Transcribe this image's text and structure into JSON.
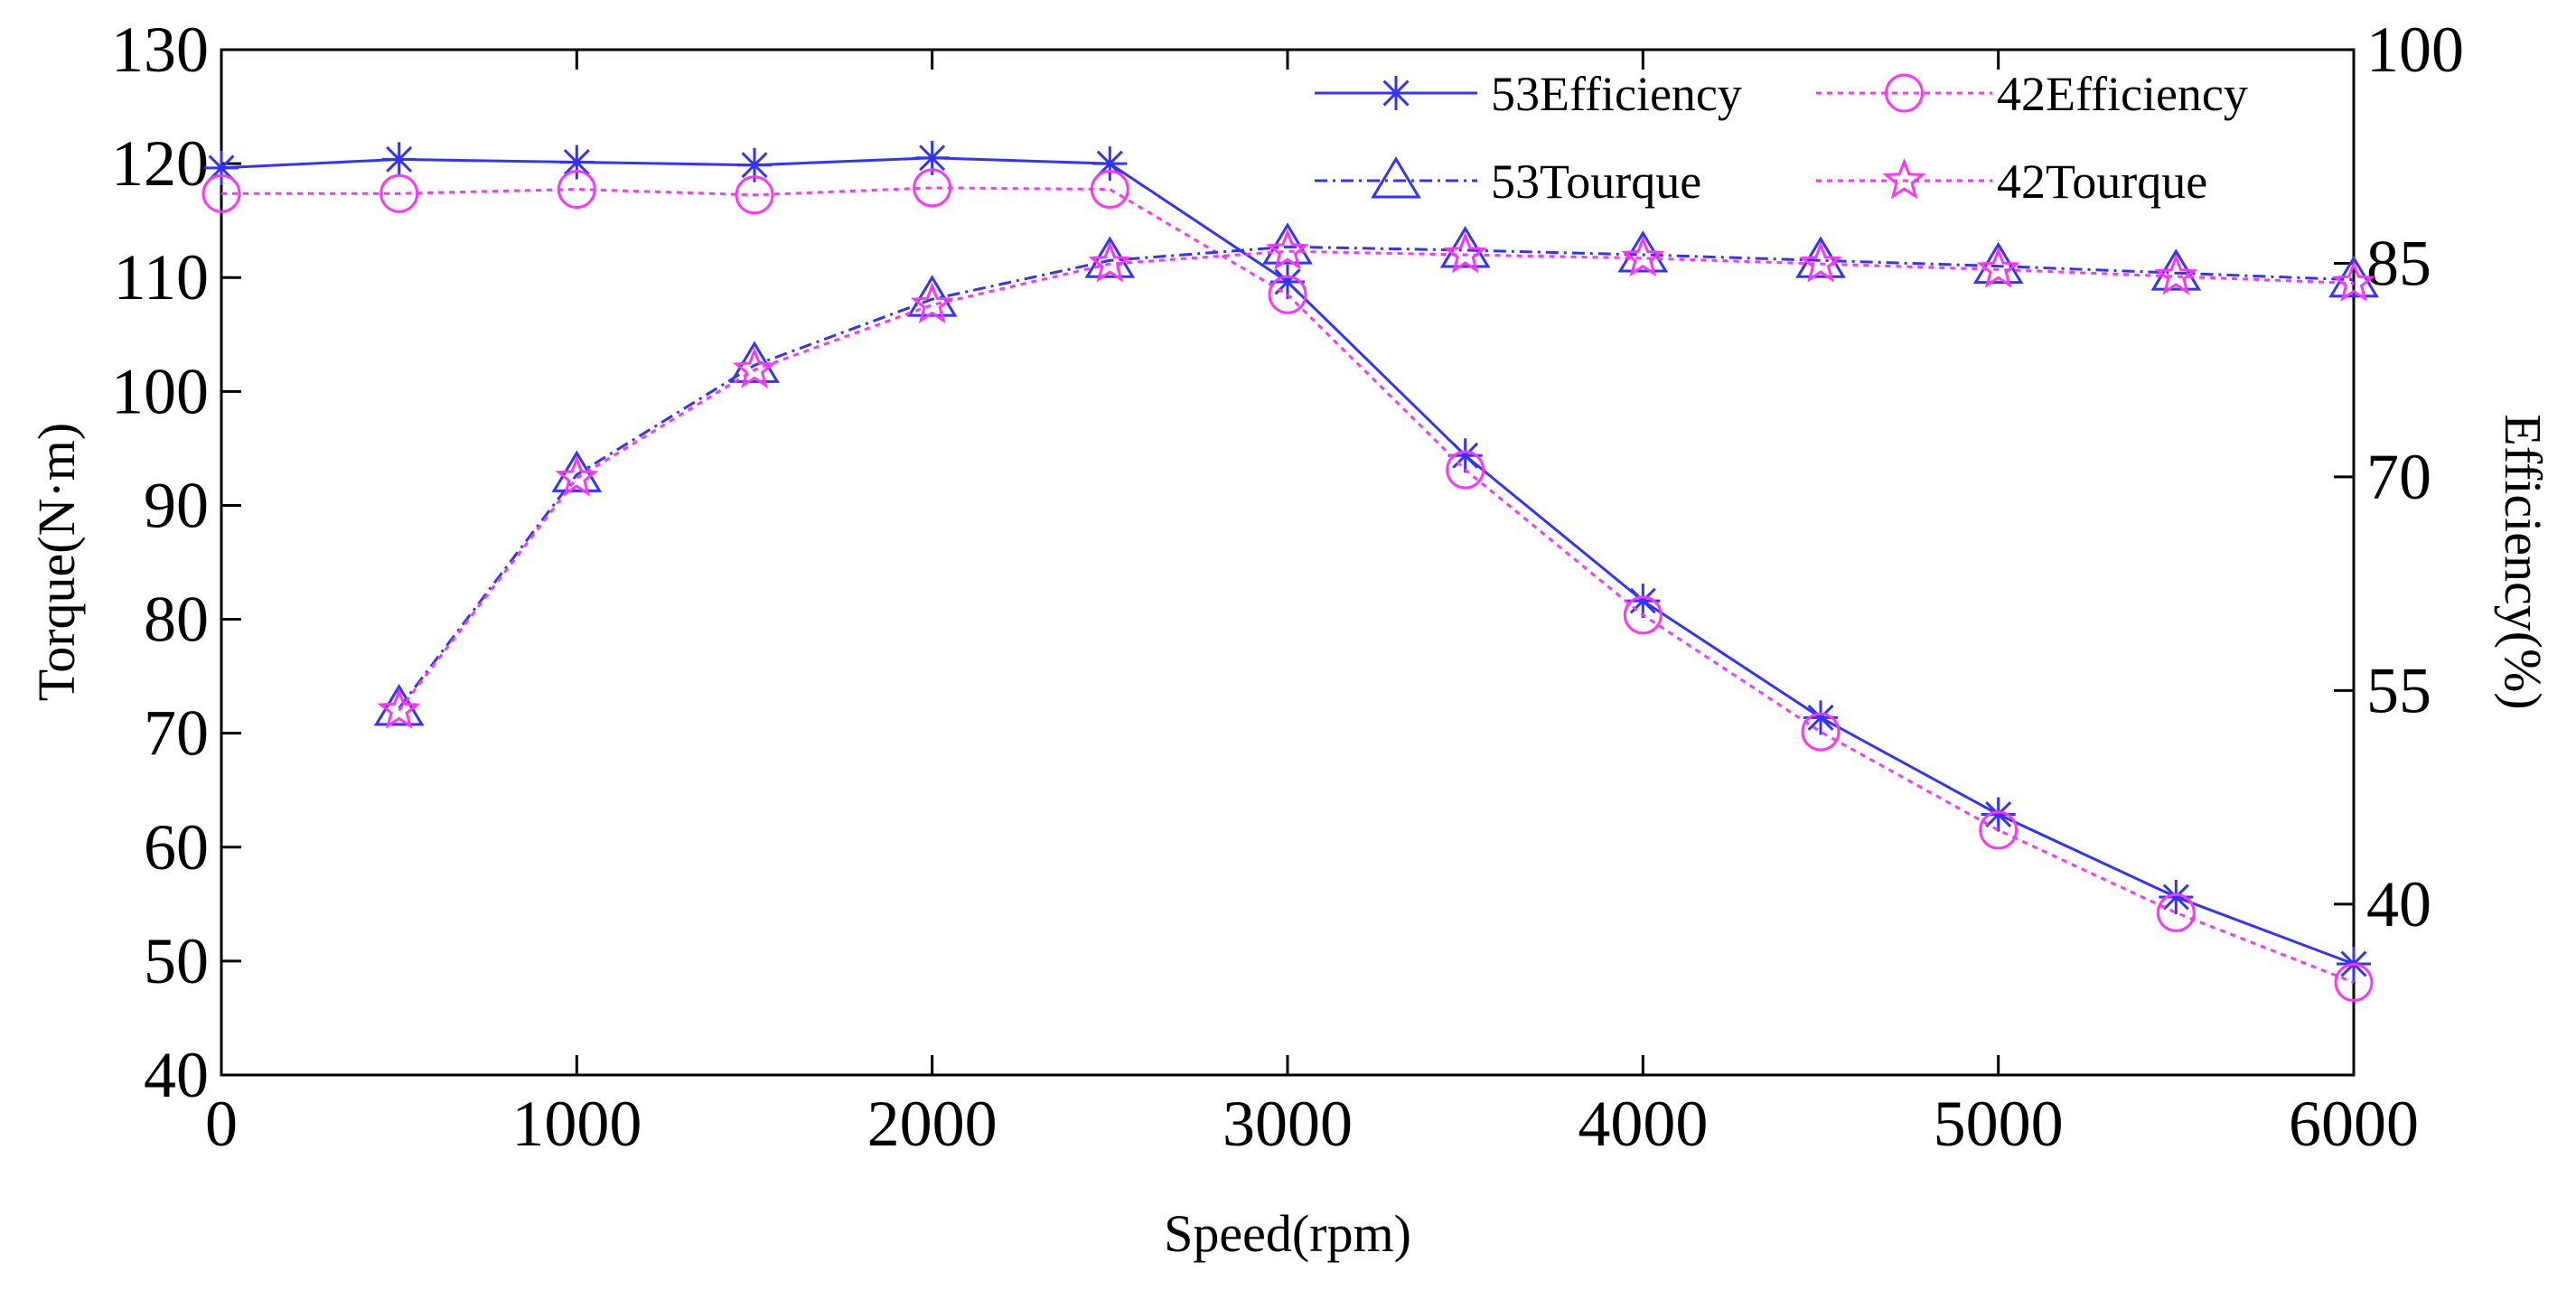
{
  "chart_data": {
    "type": "line",
    "xlabel": "Speed(rpm)",
    "ylabel_left": "Torque(N·m)",
    "ylabel_right": "Efficiency(%)",
    "x_ticks": [
      0,
      1000,
      2000,
      3000,
      4000,
      5000,
      6000
    ],
    "y_left_ticks": [
      40,
      50,
      60,
      70,
      80,
      90,
      100,
      110,
      120,
      130
    ],
    "y_right_ticks": [
      40,
      55,
      70,
      85,
      100
    ],
    "xlim": [
      0,
      6000
    ],
    "ylim_left": [
      40,
      130
    ],
    "ylim_right": [
      28,
      100
    ],
    "grid": false,
    "legend_position": "top-right",
    "series": [
      {
        "name": "53Efficiency",
        "axis": "right",
        "color": "#3333ff",
        "line": "solid",
        "marker": "asterisk",
        "x": [
          0,
          500,
          1000,
          1500,
          2000,
          2500,
          3000,
          3500,
          4000,
          4500,
          5000,
          5500,
          6000
        ],
        "values": [
          91.7,
          92.3,
          92.1,
          91.9,
          92.4,
          92.0,
          83.7,
          71.5,
          61.3,
          53.1,
          46.3,
          40.5,
          35.8
        ]
      },
      {
        "name": "42Efficiency",
        "axis": "right",
        "color": "#ff33ff",
        "line": "dotted",
        "marker": "circle",
        "x": [
          0,
          500,
          1000,
          1500,
          2000,
          2500,
          3000,
          3500,
          4000,
          4500,
          5000,
          5500,
          6000
        ],
        "values": [
          89.9,
          89.9,
          90.2,
          89.8,
          90.3,
          90.2,
          82.8,
          70.5,
          60.3,
          52.1,
          45.2,
          39.4,
          34.5
        ]
      },
      {
        "name": "53Tourque",
        "axis": "left",
        "color": "#3333ff",
        "line": "dash-dot",
        "marker": "triangle",
        "x": [
          500,
          1000,
          1500,
          2000,
          2500,
          3000,
          3500,
          4000,
          4500,
          5000,
          5500,
          6000
        ],
        "values": [
          72.2,
          92.7,
          102.3,
          108.1,
          111.5,
          112.7,
          112.4,
          112.0,
          111.5,
          111.0,
          110.4,
          109.8
        ]
      },
      {
        "name": "42Tourque",
        "axis": "left",
        "color": "#ff33ff",
        "line": "dotted",
        "marker": "star",
        "x": [
          500,
          1000,
          1500,
          2000,
          2500,
          3000,
          3500,
          4000,
          4500,
          5000,
          5500,
          6000
        ],
        "values": [
          72.0,
          92.4,
          101.9,
          107.6,
          111.2,
          112.3,
          112.0,
          111.7,
          111.2,
          110.7,
          110.1,
          109.5
        ]
      }
    ]
  }
}
